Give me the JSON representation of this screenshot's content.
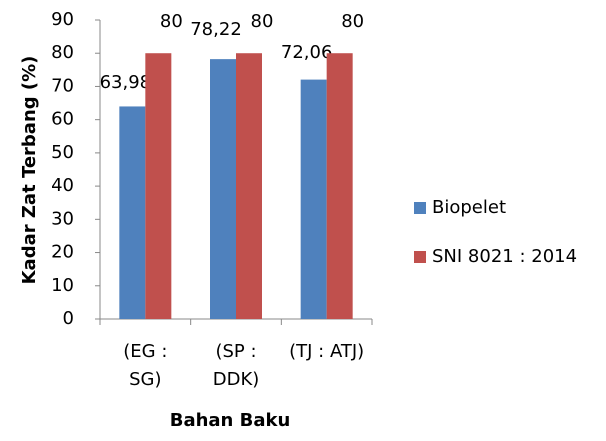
{
  "chart_data": {
    "type": "bar",
    "categories": [
      "(EG : SG)",
      "(SP : DDK)",
      "(TJ : ATJ)"
    ],
    "series": [
      {
        "name": "Biopelet",
        "color": "#4f81bd",
        "values": [
          63.98,
          78.22,
          72.06
        ],
        "value_labels": [
          "63,98",
          "78,22",
          "72,06"
        ]
      },
      {
        "name": "SNI 8021 : 2014",
        "color": "#c0504d",
        "values": [
          80,
          80,
          80
        ]
      }
    ],
    "x_label": "Bahan Baku",
    "y_label": "Kadar Zat Terbang (%)",
    "ylim": [
      0,
      90
    ],
    "yticks": [
      0,
      10,
      20,
      30,
      40,
      50,
      60,
      70,
      80,
      90
    ],
    "grid": false,
    "legend": "right"
  }
}
